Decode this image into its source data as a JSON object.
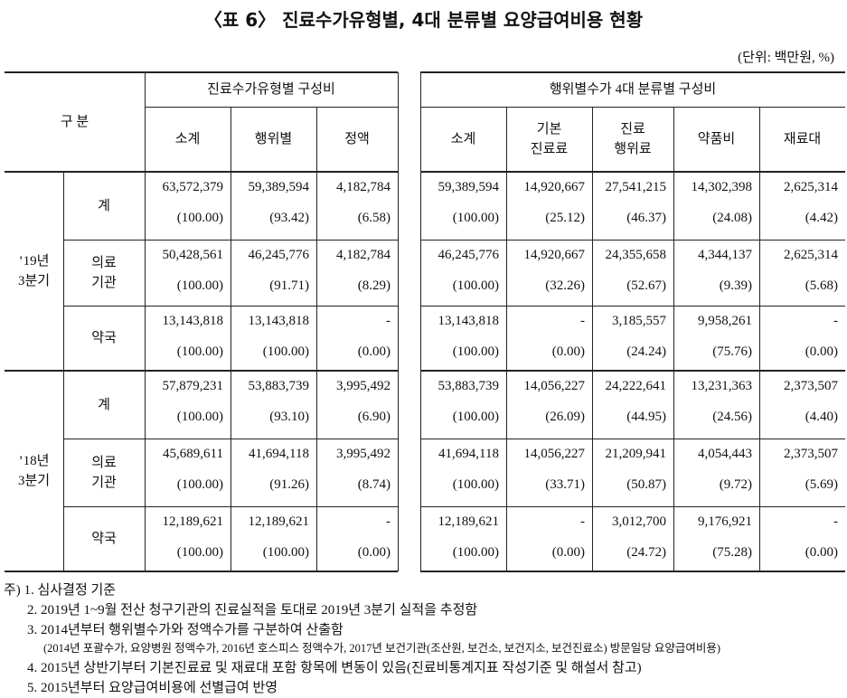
{
  "header": {
    "title": "〈표 6〉 진료수가유형별, 4대 분류별 요양급여비용 현황",
    "unit": "(단위: 백만원, %)"
  },
  "table": {
    "corner": "구 분",
    "left_group": "진료수가유형별 구성비",
    "right_group": "행위별수가 4대 분류별 구성비",
    "left_columns": [
      "소계",
      "행위별",
      "정액"
    ],
    "right_columns": [
      "소계",
      "기본\n진료료",
      "진료\n행위료",
      "약품비",
      "재료대"
    ],
    "periods": [
      {
        "label": "’19년\n3분기",
        "rows": [
          {
            "label": "계",
            "cells": [
              [
                "63,572,379",
                "(100.00)"
              ],
              [
                "59,389,594",
                "(93.42)"
              ],
              [
                "4,182,784",
                "(6.58)"
              ],
              [
                "59,389,594",
                "(100.00)"
              ],
              [
                "14,920,667",
                "(25.12)"
              ],
              [
                "27,541,215",
                "(46.37)"
              ],
              [
                "14,302,398",
                "(24.08)"
              ],
              [
                "2,625,314",
                "(4.42)"
              ]
            ]
          },
          {
            "label": "의료\n기관",
            "cells": [
              [
                "50,428,561",
                "(100.00)"
              ],
              [
                "46,245,776",
                "(91.71)"
              ],
              [
                "4,182,784",
                "(8.29)"
              ],
              [
                "46,245,776",
                "(100.00)"
              ],
              [
                "14,920,667",
                "(32.26)"
              ],
              [
                "24,355,658",
                "(52.67)"
              ],
              [
                "4,344,137",
                "(9.39)"
              ],
              [
                "2,625,314",
                "(5.68)"
              ]
            ]
          },
          {
            "label": "약국",
            "cells": [
              [
                "13,143,818",
                "(100.00)"
              ],
              [
                "13,143,818",
                "(100.00)"
              ],
              [
                "-",
                "(0.00)"
              ],
              [
                "13,143,818",
                "(100.00)"
              ],
              [
                "-",
                "(0.00)"
              ],
              [
                "3,185,557",
                "(24.24)"
              ],
              [
                "9,958,261",
                "(75.76)"
              ],
              [
                "-",
                "(0.00)"
              ]
            ]
          }
        ]
      },
      {
        "label": "’18년\n3분기",
        "rows": [
          {
            "label": "계",
            "cells": [
              [
                "57,879,231",
                "(100.00)"
              ],
              [
                "53,883,739",
                "(93.10)"
              ],
              [
                "3,995,492",
                "(6.90)"
              ],
              [
                "53,883,739",
                "(100.00)"
              ],
              [
                "14,056,227",
                "(26.09)"
              ],
              [
                "24,222,641",
                "(44.95)"
              ],
              [
                "13,231,363",
                "(24.56)"
              ],
              [
                "2,373,507",
                "(4.40)"
              ]
            ]
          },
          {
            "label": "의료\n기관",
            "cells": [
              [
                "45,689,611",
                "(100.00)"
              ],
              [
                "41,694,118",
                "(91.26)"
              ],
              [
                "3,995,492",
                "(8.74)"
              ],
              [
                "41,694,118",
                "(100.00)"
              ],
              [
                "14,056,227",
                "(33.71)"
              ],
              [
                "21,209,941",
                "(50.87)"
              ],
              [
                "4,054,443",
                "(9.72)"
              ],
              [
                "2,373,507",
                "(5.69)"
              ]
            ]
          },
          {
            "label": "약국",
            "cells": [
              [
                "12,189,621",
                "(100.00)"
              ],
              [
                "12,189,621",
                "(100.00)"
              ],
              [
                "-",
                "(0.00)"
              ],
              [
                "12,189,621",
                "(100.00)"
              ],
              [
                "-",
                "(0.00)"
              ],
              [
                "3,012,700",
                "(24.72)"
              ],
              [
                "9,176,921",
                "(75.28)"
              ],
              [
                "-",
                "(0.00)"
              ]
            ]
          }
        ]
      }
    ]
  },
  "notes": [
    "주) 1. 심사결정 기준",
    "2. 2019년 1~9월 전산 청구기관의 진료실적을 토대로 2019년 3분기 실적을 추정함",
    "3. 2014년부터 행위별수가와 정액수가를 구분하여 산출함",
    "(2014년 포괄수가, 요양병원 정액수가, 2016년 호스피스 정액수가, 2017년 보건기관(조산원, 보건소, 보건지소, 보건진료소) 방문일당 요양급여비용)",
    "4. 2015년 상반기부터 기본진료료 및 재료대 포함 항목에 변동이 있음(진료비통계지표 작성기준 및 해설서 참고)",
    "5. 2015년부터 요양급여비용에 선별급여 반영"
  ]
}
